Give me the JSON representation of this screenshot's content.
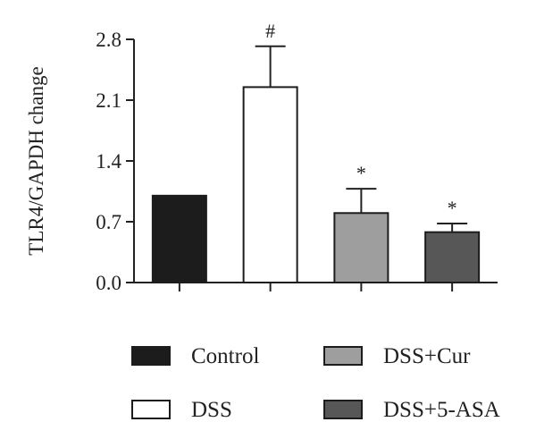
{
  "chart_data": {
    "type": "bar",
    "categories": [
      "Control",
      "DSS",
      "DSS+Cur",
      "DSS+5-ASA"
    ],
    "values": [
      1.0,
      2.25,
      0.8,
      0.58
    ],
    "error_upper": [
      0.0,
      0.47,
      0.28,
      0.1
    ],
    "annotations": [
      "",
      "#",
      "*",
      "*"
    ],
    "colors": [
      "#1c1c1c",
      "#ffffff",
      "#9e9e9e",
      "#575757"
    ],
    "ylabel": "TLR4/GAPDH change",
    "xlabel": "",
    "title": "",
    "ylim": [
      0,
      2.8
    ],
    "yticks": [
      "0.0",
      "0.7",
      "1.4",
      "2.1",
      "2.8"
    ],
    "grid": false,
    "legend": {
      "placement": "bottom",
      "entries": [
        "Control",
        "DSS+Cur",
        "DSS",
        "DSS+5-ASA"
      ],
      "colors": [
        "#1c1c1c",
        "#9e9e9e",
        "#ffffff",
        "#575757"
      ]
    }
  }
}
